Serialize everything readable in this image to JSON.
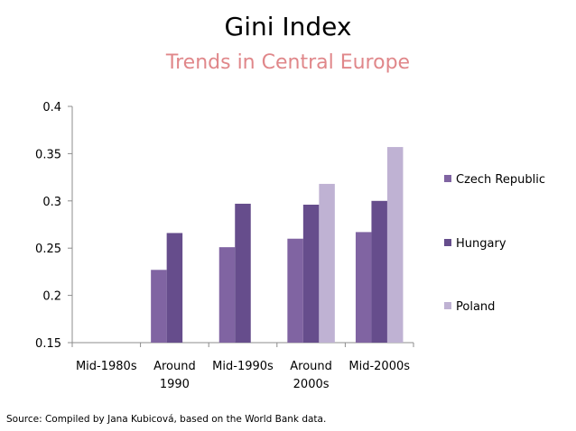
{
  "chart_data": {
    "type": "bar",
    "title": "Gini Index",
    "subtitle": "Trends in Central Europe",
    "categories": [
      "Mid-1980s",
      "Around 1990",
      "Mid-1990s",
      "Around 2000s",
      "Mid-2000s"
    ],
    "category_lines": [
      [
        "Mid-1980s"
      ],
      [
        "Around",
        "1990"
      ],
      [
        "Mid-1990s"
      ],
      [
        "Around",
        "2000s"
      ],
      [
        "Mid-2000s"
      ]
    ],
    "series": [
      {
        "name": "Czech Republic",
        "color": "#8064a2",
        "values": [
          null,
          0.227,
          0.251,
          0.26,
          0.267
        ]
      },
      {
        "name": "Hungary",
        "color": "#664d8c",
        "values": [
          null,
          0.266,
          0.297,
          0.296,
          0.3
        ]
      },
      {
        "name": "Poland",
        "color": "#bfb2d3",
        "values": [
          null,
          null,
          null,
          0.318,
          0.357
        ]
      }
    ],
    "ylim": [
      0.15,
      0.4
    ],
    "yticks": [
      "0.15",
      "0.2",
      "0.25",
      "0.3",
      "0.35",
      "0.4"
    ],
    "grid": false,
    "legend_position": "right"
  },
  "source_note": "Source: Compiled by Jana Kubicová, based on the World Bank data."
}
